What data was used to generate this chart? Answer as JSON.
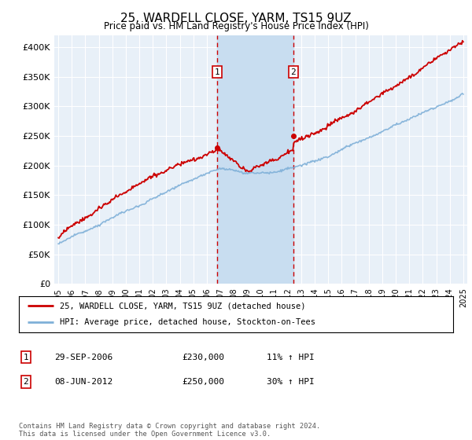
{
  "title": "25, WARDELL CLOSE, YARM, TS15 9UZ",
  "subtitle": "Price paid vs. HM Land Registry's House Price Index (HPI)",
  "ylim": [
    0,
    420000
  ],
  "yticks": [
    0,
    50000,
    100000,
    150000,
    200000,
    250000,
    300000,
    350000,
    400000
  ],
  "ytick_labels": [
    "£0",
    "£50K",
    "£100K",
    "£150K",
    "£200K",
    "£250K",
    "£300K",
    "£350K",
    "£400K"
  ],
  "background_color": "#ffffff",
  "plot_bg_color": "#e8f0f8",
  "grid_color": "#ffffff",
  "sale1_price": 230000,
  "sale2_price": 250000,
  "sale1_label": "1",
  "sale2_label": "2",
  "legend_line1": "25, WARDELL CLOSE, YARM, TS15 9UZ (detached house)",
  "legend_line2": "HPI: Average price, detached house, Stockton-on-Tees",
  "line1_color": "#cc0000",
  "line2_color": "#7fb0d8",
  "shade_color": "#c8ddf0",
  "vline_color": "#cc0000",
  "copyright_text": "Contains HM Land Registry data © Crown copyright and database right 2024.\nThis data is licensed under the Open Government Licence v3.0.",
  "table_rows": [
    [
      "1",
      "29-SEP-2006",
      "£230,000",
      "11% ↑ HPI"
    ],
    [
      "2",
      "08-JUN-2012",
      "£250,000",
      "30% ↑ HPI"
    ]
  ]
}
